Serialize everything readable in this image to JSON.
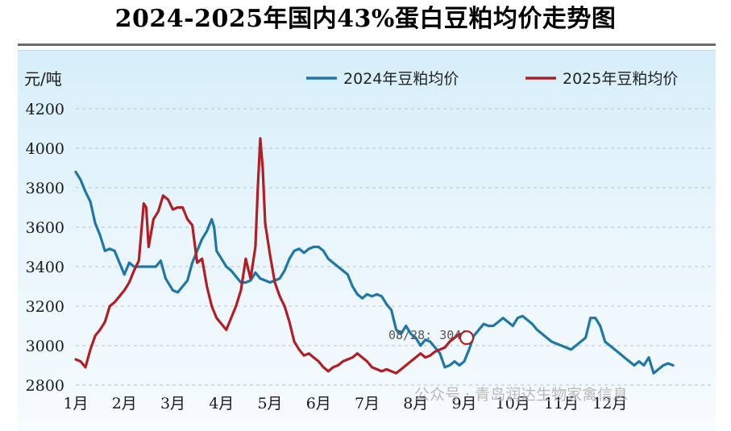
{
  "title": "2024-2025年国内43%蛋白豆粕均价走势图",
  "watermark": "公众号 · 青岛润达生物家禽信息",
  "chart_data": {
    "type": "line",
    "ylabel": "元/吨",
    "ylim": [
      2800,
      4200
    ],
    "yticks": [
      2800,
      3000,
      3200,
      3400,
      3600,
      3800,
      4000,
      4200
    ],
    "xlim": [
      1,
      13
    ],
    "xticks": [
      {
        "label": "1月",
        "x": 1
      },
      {
        "label": "2月",
        "x": 2
      },
      {
        "label": "3月",
        "x": 3
      },
      {
        "label": "4月",
        "x": 4
      },
      {
        "label": "5月",
        "x": 5
      },
      {
        "label": "6月",
        "x": 6
      },
      {
        "label": "7月",
        "x": 7
      },
      {
        "label": "8月",
        "x": 8
      },
      {
        "label": "9月",
        "x": 9
      },
      {
        "label": "10月",
        "x": 10
      },
      {
        "label": "11月",
        "x": 11
      },
      {
        "label": "12月",
        "x": 12
      }
    ],
    "grid": "horizontal-dashed",
    "legend_position": "top-right",
    "annotation": {
      "text": "08/28: 3040",
      "x": 9.05,
      "y": 3040
    },
    "series": [
      {
        "name": "2024年豆粕均价",
        "color": "#1f77a8",
        "points": [
          [
            1.0,
            3880
          ],
          [
            1.1,
            3840
          ],
          [
            1.2,
            3780
          ],
          [
            1.3,
            3730
          ],
          [
            1.4,
            3620
          ],
          [
            1.5,
            3560
          ],
          [
            1.6,
            3480
          ],
          [
            1.7,
            3490
          ],
          [
            1.8,
            3480
          ],
          [
            1.9,
            3420
          ],
          [
            2.0,
            3360
          ],
          [
            2.1,
            3420
          ],
          [
            2.2,
            3400
          ],
          [
            2.3,
            3400
          ],
          [
            2.5,
            3400
          ],
          [
            2.65,
            3400
          ],
          [
            2.75,
            3430
          ],
          [
            2.85,
            3340
          ],
          [
            3.0,
            3280
          ],
          [
            3.1,
            3270
          ],
          [
            3.2,
            3300
          ],
          [
            3.3,
            3330
          ],
          [
            3.4,
            3420
          ],
          [
            3.5,
            3480
          ],
          [
            3.6,
            3540
          ],
          [
            3.7,
            3580
          ],
          [
            3.8,
            3640
          ],
          [
            3.85,
            3600
          ],
          [
            3.9,
            3480
          ],
          [
            4.0,
            3440
          ],
          [
            4.1,
            3400
          ],
          [
            4.2,
            3380
          ],
          [
            4.3,
            3350
          ],
          [
            4.4,
            3320
          ],
          [
            4.5,
            3320
          ],
          [
            4.6,
            3330
          ],
          [
            4.7,
            3370
          ],
          [
            4.8,
            3340
          ],
          [
            4.9,
            3330
          ],
          [
            5.0,
            3320
          ],
          [
            5.1,
            3330
          ],
          [
            5.2,
            3340
          ],
          [
            5.3,
            3380
          ],
          [
            5.4,
            3440
          ],
          [
            5.5,
            3480
          ],
          [
            5.6,
            3490
          ],
          [
            5.7,
            3470
          ],
          [
            5.8,
            3490
          ],
          [
            5.9,
            3500
          ],
          [
            6.0,
            3500
          ],
          [
            6.1,
            3480
          ],
          [
            6.2,
            3440
          ],
          [
            6.3,
            3420
          ],
          [
            6.4,
            3400
          ],
          [
            6.5,
            3380
          ],
          [
            6.6,
            3360
          ],
          [
            6.7,
            3300
          ],
          [
            6.8,
            3260
          ],
          [
            6.9,
            3240
          ],
          [
            7.0,
            3260
          ],
          [
            7.1,
            3250
          ],
          [
            7.2,
            3260
          ],
          [
            7.3,
            3250
          ],
          [
            7.4,
            3210
          ],
          [
            7.5,
            3180
          ],
          [
            7.6,
            3080
          ],
          [
            7.7,
            3060
          ],
          [
            7.8,
            3100
          ],
          [
            7.9,
            3060
          ],
          [
            8.0,
            3040
          ],
          [
            8.1,
            3000
          ],
          [
            8.2,
            3030
          ],
          [
            8.3,
            3020
          ],
          [
            8.4,
            2990
          ],
          [
            8.5,
            2960
          ],
          [
            8.6,
            2890
          ],
          [
            8.7,
            2900
          ],
          [
            8.8,
            2920
          ],
          [
            8.9,
            2900
          ],
          [
            9.0,
            2920
          ],
          [
            9.1,
            2980
          ],
          [
            9.2,
            3050
          ],
          [
            9.3,
            3080
          ],
          [
            9.4,
            3110
          ],
          [
            9.5,
            3100
          ],
          [
            9.6,
            3100
          ],
          [
            9.7,
            3120
          ],
          [
            9.8,
            3140
          ],
          [
            9.9,
            3120
          ],
          [
            10.0,
            3100
          ],
          [
            10.1,
            3140
          ],
          [
            10.2,
            3150
          ],
          [
            10.3,
            3130
          ],
          [
            10.4,
            3110
          ],
          [
            10.5,
            3080
          ],
          [
            10.6,
            3060
          ],
          [
            10.7,
            3040
          ],
          [
            10.8,
            3020
          ],
          [
            10.9,
            3010
          ],
          [
            11.0,
            3000
          ],
          [
            11.1,
            2990
          ],
          [
            11.2,
            2980
          ],
          [
            11.3,
            3000
          ],
          [
            11.4,
            3020
          ],
          [
            11.5,
            3040
          ],
          [
            11.6,
            3140
          ],
          [
            11.7,
            3140
          ],
          [
            11.8,
            3100
          ],
          [
            11.9,
            3020
          ],
          [
            12.0,
            3000
          ],
          [
            12.1,
            2980
          ],
          [
            12.2,
            2960
          ],
          [
            12.3,
            2940
          ],
          [
            12.4,
            2920
          ],
          [
            12.5,
            2900
          ],
          [
            12.6,
            2920
          ],
          [
            12.7,
            2900
          ],
          [
            12.8,
            2940
          ],
          [
            12.9,
            2860
          ],
          [
            13.0,
            2880
          ],
          [
            13.1,
            2900
          ],
          [
            13.2,
            2910
          ],
          [
            13.3,
            2900
          ]
        ]
      },
      {
        "name": "2025年豆粕均价",
        "color": "#b01f24",
        "points": [
          [
            1.0,
            2930
          ],
          [
            1.1,
            2920
          ],
          [
            1.2,
            2890
          ],
          [
            1.3,
            2980
          ],
          [
            1.4,
            3050
          ],
          [
            1.5,
            3080
          ],
          [
            1.6,
            3120
          ],
          [
            1.7,
            3200
          ],
          [
            1.8,
            3220
          ],
          [
            1.9,
            3250
          ],
          [
            2.0,
            3280
          ],
          [
            2.1,
            3320
          ],
          [
            2.2,
            3380
          ],
          [
            2.3,
            3430
          ],
          [
            2.4,
            3720
          ],
          [
            2.45,
            3700
          ],
          [
            2.5,
            3500
          ],
          [
            2.6,
            3640
          ],
          [
            2.7,
            3680
          ],
          [
            2.8,
            3760
          ],
          [
            2.9,
            3740
          ],
          [
            3.0,
            3690
          ],
          [
            3.1,
            3700
          ],
          [
            3.2,
            3700
          ],
          [
            3.3,
            3640
          ],
          [
            3.4,
            3610
          ],
          [
            3.5,
            3420
          ],
          [
            3.6,
            3440
          ],
          [
            3.7,
            3300
          ],
          [
            3.8,
            3200
          ],
          [
            3.9,
            3140
          ],
          [
            4.0,
            3110
          ],
          [
            4.1,
            3080
          ],
          [
            4.2,
            3140
          ],
          [
            4.3,
            3200
          ],
          [
            4.4,
            3280
          ],
          [
            4.5,
            3440
          ],
          [
            4.6,
            3340
          ],
          [
            4.7,
            3500
          ],
          [
            4.75,
            3800
          ],
          [
            4.8,
            4050
          ],
          [
            4.85,
            3900
          ],
          [
            4.9,
            3620
          ],
          [
            5.0,
            3460
          ],
          [
            5.1,
            3320
          ],
          [
            5.2,
            3250
          ],
          [
            5.3,
            3200
          ],
          [
            5.4,
            3120
          ],
          [
            5.5,
            3020
          ],
          [
            5.6,
            2980
          ],
          [
            5.7,
            2950
          ],
          [
            5.8,
            2960
          ],
          [
            5.9,
            2940
          ],
          [
            6.0,
            2920
          ],
          [
            6.1,
            2890
          ],
          [
            6.2,
            2870
          ],
          [
            6.3,
            2890
          ],
          [
            6.4,
            2900
          ],
          [
            6.5,
            2920
          ],
          [
            6.6,
            2930
          ],
          [
            6.7,
            2940
          ],
          [
            6.8,
            2960
          ],
          [
            6.9,
            2940
          ],
          [
            7.0,
            2920
          ],
          [
            7.1,
            2890
          ],
          [
            7.2,
            2880
          ],
          [
            7.3,
            2870
          ],
          [
            7.4,
            2880
          ],
          [
            7.5,
            2870
          ],
          [
            7.6,
            2860
          ],
          [
            7.7,
            2880
          ],
          [
            7.8,
            2900
          ],
          [
            7.9,
            2920
          ],
          [
            8.0,
            2940
          ],
          [
            8.1,
            2960
          ],
          [
            8.2,
            2940
          ],
          [
            8.3,
            2950
          ],
          [
            8.4,
            2970
          ],
          [
            8.5,
            2980
          ],
          [
            8.6,
            2990
          ],
          [
            8.7,
            3020
          ],
          [
            8.8,
            3040
          ],
          [
            8.9,
            3060
          ],
          [
            9.0,
            3050
          ],
          [
            9.05,
            3040
          ]
        ]
      }
    ]
  }
}
